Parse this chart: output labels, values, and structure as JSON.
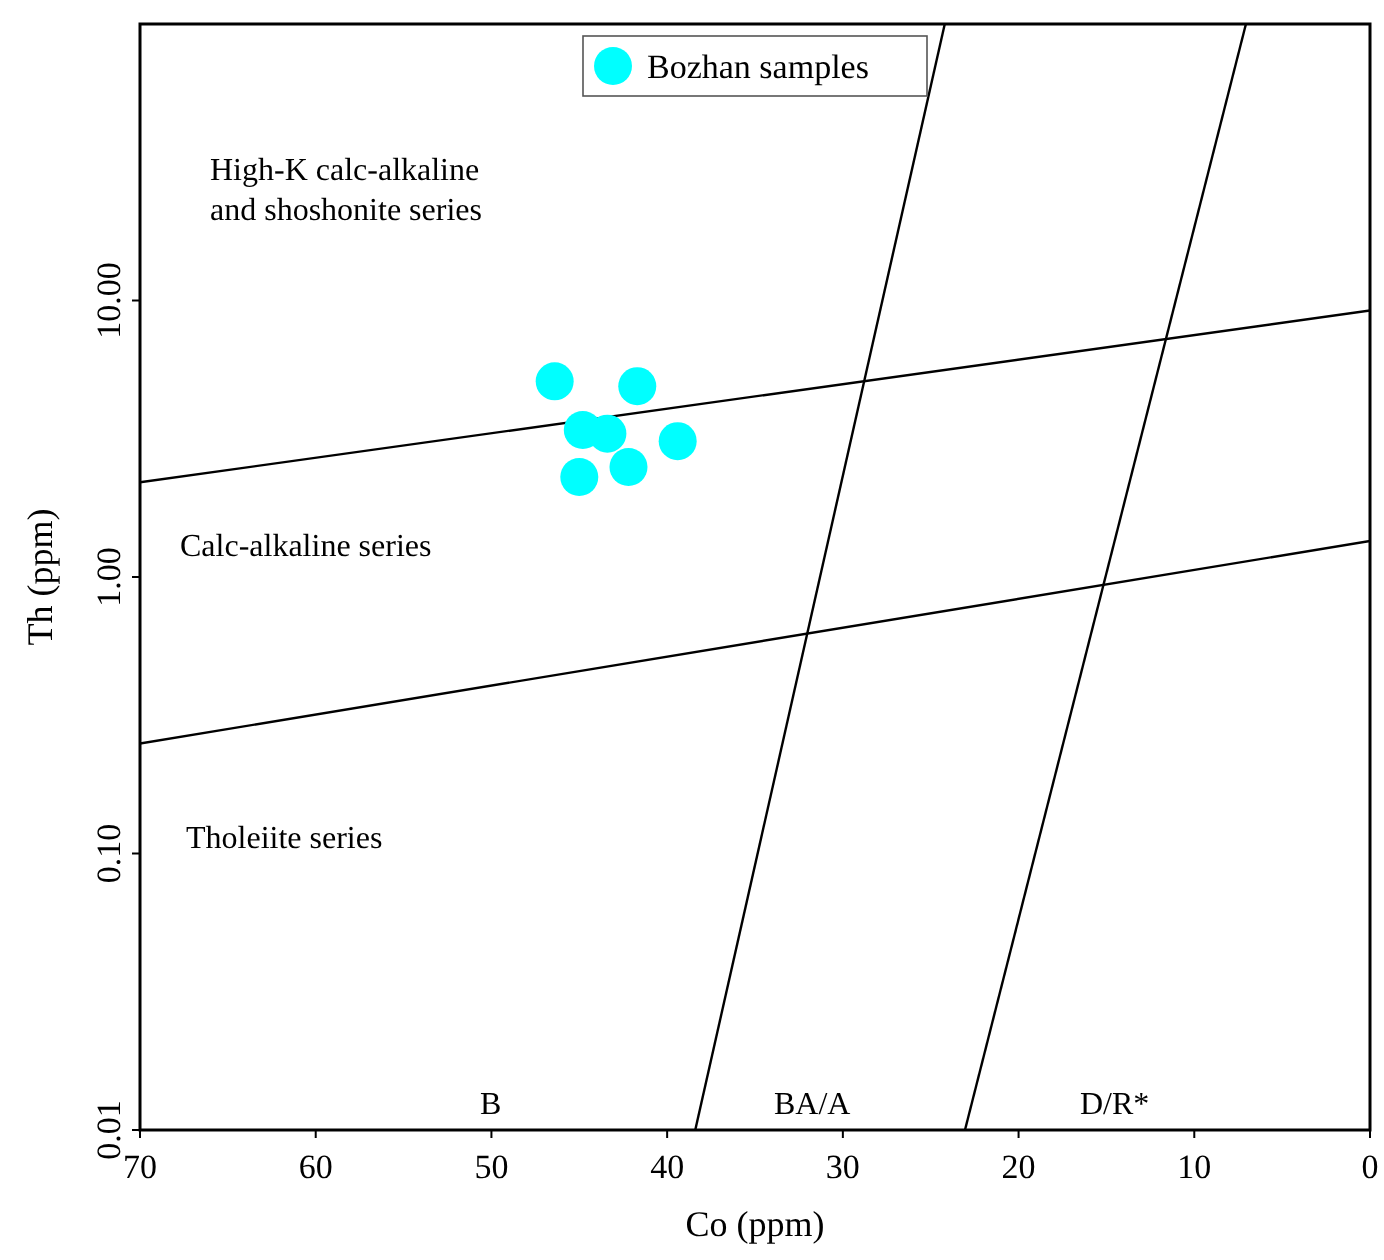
{
  "chart_data": {
    "type": "scatter",
    "xlabel": "Co (ppm)",
    "ylabel": "Th (ppm)",
    "log": "y",
    "xlim": [
      70,
      0
    ],
    "ylim": [
      0.01,
      100
    ],
    "xticks": [
      70,
      60,
      50,
      40,
      30,
      20,
      10,
      0
    ],
    "yticks": [
      {
        "value": 0.01,
        "label": "0.01"
      },
      {
        "value": 0.1,
        "label": "0.10"
      },
      {
        "value": 1,
        "label": "1.00"
      },
      {
        "value": 10,
        "label": "10.00"
      }
    ],
    "grid": false,
    "legend": "top",
    "series": [
      {
        "name": "Bozhan samples",
        "marker": "circle",
        "color": "#00ffff",
        "x": [
          46.4,
          41.7,
          44.8,
          43.4,
          39.4,
          45.0,
          42.2
        ],
        "values": [
          5.1,
          4.9,
          3.4,
          3.3,
          3.1,
          2.3,
          2.5
        ]
      },
      {
        "type": "line",
        "color": "#000000",
        "x": [
          70,
          0
        ],
        "values": [
          2.2,
          9.2
        ]
      },
      {
        "type": "line",
        "color": "#000000",
        "x": [
          70,
          0
        ],
        "values": [
          0.25,
          1.35
        ]
      },
      {
        "type": "line",
        "color": "#000000",
        "x": [
          38.4,
          24.2
        ],
        "values": [
          0.01,
          100
        ]
      },
      {
        "type": "line",
        "color": "#000000",
        "x": [
          23.05,
          7.06
        ],
        "values": [
          0.01,
          100
        ]
      }
    ],
    "annotations": [
      "High-K calc-alkaline\nand shoshonite series",
      "Calc-alkaline series",
      "Tholeiite series",
      "B",
      "BA/A",
      "D/R*"
    ]
  }
}
